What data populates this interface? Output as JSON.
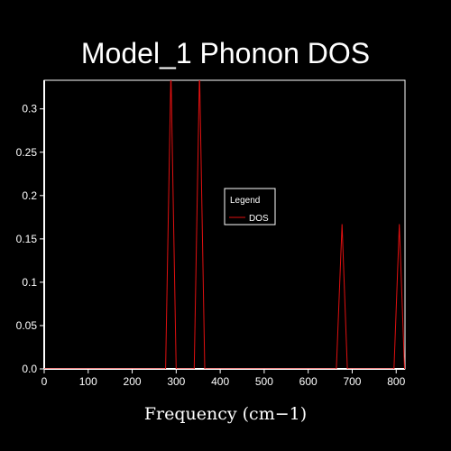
{
  "chart_data": {
    "type": "line",
    "title": "Model_1 Phonon DOS",
    "xlabel": "Frequency (cm−1)",
    "ylabel": "",
    "xlim": [
      0,
      820
    ],
    "ylim": [
      0,
      0.333
    ],
    "x_ticks": [
      0,
      100,
      200,
      300,
      400,
      500,
      600,
      700,
      800
    ],
    "y_ticks": [
      0.0,
      0.05,
      0.1,
      0.15,
      0.2,
      0.25,
      0.3
    ],
    "y_tick_labels": [
      "0.0",
      "0.05",
      "0.1",
      "0.15",
      "0.2",
      "0.25",
      "0.3"
    ],
    "grid": false,
    "legend": {
      "title": "Legend",
      "placement": "center",
      "entries": [
        "DOS"
      ]
    },
    "series": [
      {
        "name": "DOS",
        "color": "#e01010",
        "points": [
          [
            0,
            0
          ],
          [
            276,
            0
          ],
          [
            288,
            0.345
          ],
          [
            300,
            0
          ],
          [
            341,
            0
          ],
          [
            353,
            0.345
          ],
          [
            365,
            0
          ],
          [
            664,
            0
          ],
          [
            677,
            0.167
          ],
          [
            689,
            0
          ],
          [
            795,
            0
          ],
          [
            807,
            0.167
          ],
          [
            819,
            0
          ],
          [
            820,
            0
          ]
        ]
      }
    ]
  }
}
